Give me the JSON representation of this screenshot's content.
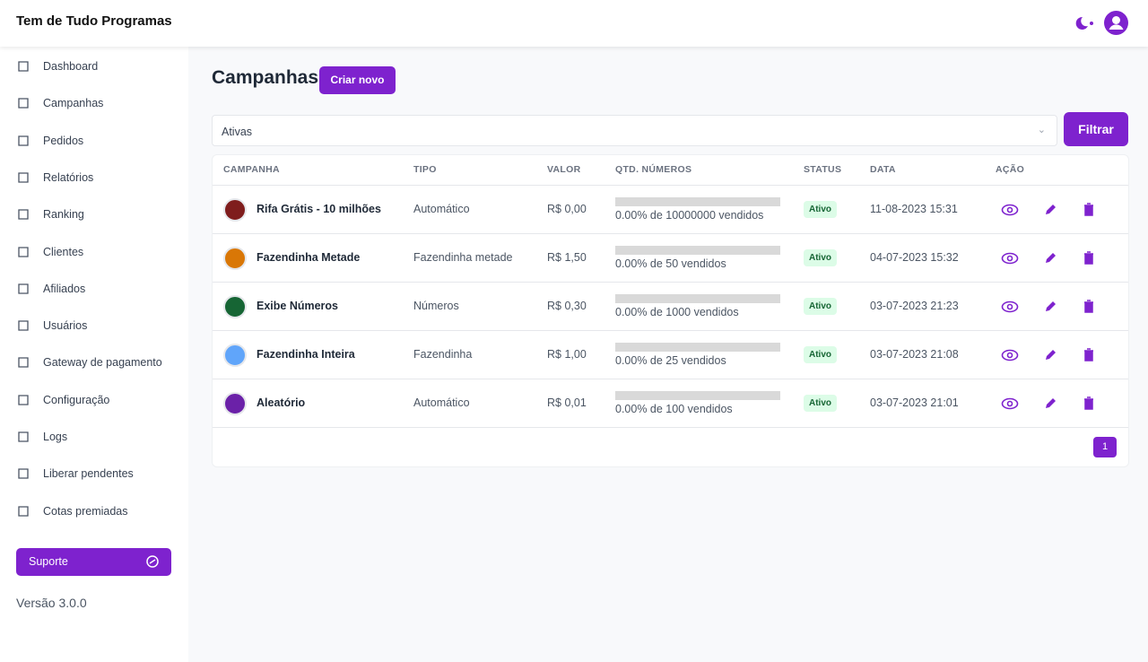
{
  "header": {
    "brand": "Tem de Tudo Programas"
  },
  "sidebar": {
    "menu": [
      "Dashboard",
      "Campanhas",
      "Pedidos",
      "Relatórios",
      "Ranking",
      "Clientes",
      "Afiliados",
      "Usuários",
      "Gateway de pagamento",
      "Configuração",
      "Logs",
      "Liberar pendentes",
      "Cotas premiadas"
    ],
    "support": "Suporte",
    "version": "Versão 3.0.0"
  },
  "page": {
    "title": "Campanhas",
    "create_button": "Criar novo",
    "filter_select": "Ativas",
    "filter_button": "Filtrar"
  },
  "table": {
    "columns": [
      "CAMPANHA",
      "TIPO",
      "VALOR",
      "QTD. NÚMEROS",
      "STATUS",
      "DATA",
      "AÇÃO"
    ],
    "rows": [
      [
        "Rifa Grátis - 10 milhões",
        "Automático",
        "R$ 0,00",
        "0.00% de 10000000 vendidos",
        "Ativo",
        "11-08-2023 15:31"
      ],
      [
        "Fazendinha Metade",
        "Fazendinha metade",
        "R$ 1,50",
        "0.00% de 50 vendidos",
        "Ativo",
        "04-07-2023 15:32"
      ],
      [
        "Exibe Números",
        "Números",
        "R$ 0,30",
        "0.00% de 1000 vendidos",
        "Ativo",
        "03-07-2023 21:23"
      ],
      [
        "Fazendinha Inteira",
        "Fazendinha",
        "R$ 1,00",
        "0.00% de 25 vendidos",
        "Ativo",
        "03-07-2023 21:08"
      ],
      [
        "Aleatório",
        "Automático",
        "R$ 0,01",
        "0.00% de 100 vendidos",
        "Ativo",
        "03-07-2023 21:01"
      ]
    ]
  },
  "pagination": {
    "pages": [
      1
    ]
  }
}
